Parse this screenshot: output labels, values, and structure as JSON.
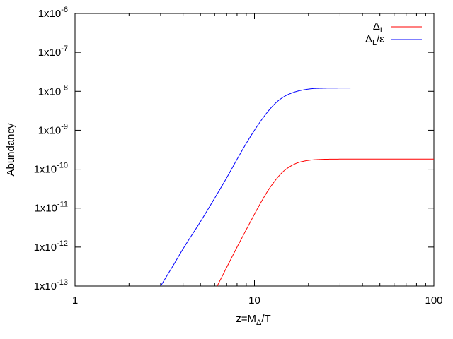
{
  "chart_data": {
    "type": "line",
    "xlabel": {
      "main": "z=M",
      "sub": "Δ",
      "rest": "/T"
    },
    "ylabel": "Abundancy",
    "xscale": "log",
    "yscale": "log",
    "xlim": [
      1,
      100
    ],
    "ylim": [
      1e-13,
      1e-06
    ],
    "x_ticks": [
      {
        "value": 1,
        "label": "1"
      },
      {
        "value": 10,
        "label": "10"
      },
      {
        "value": 100,
        "label": "100"
      }
    ],
    "y_ticks": [
      {
        "value": 1e-06,
        "base": "1x10",
        "exp": "-6"
      },
      {
        "value": 1e-07,
        "base": "1x10",
        "exp": "-7"
      },
      {
        "value": 1e-08,
        "base": "1x10",
        "exp": "-8"
      },
      {
        "value": 1e-09,
        "base": "1x10",
        "exp": "-9"
      },
      {
        "value": 1e-10,
        "base": "1x10",
        "exp": "-10"
      },
      {
        "value": 1e-11,
        "base": "1x10",
        "exp": "-11"
      },
      {
        "value": 1e-12,
        "base": "1x10",
        "exp": "-12"
      },
      {
        "value": 1e-13,
        "base": "1x10",
        "exp": "-13"
      }
    ],
    "grid": false,
    "legend_position": "top-right",
    "series": [
      {
        "name": "Δ_L",
        "label_main": "Δ",
        "label_sub": "L",
        "label_rest": "",
        "color": "#ff0000",
        "points": [
          [
            6.2,
            1e-13
          ],
          [
            7,
            3e-13
          ],
          [
            8,
            1e-12
          ],
          [
            9,
            2.8e-12
          ],
          [
            10,
            7e-12
          ],
          [
            11,
            1.55e-11
          ],
          [
            12,
            3e-11
          ],
          [
            13,
            5e-11
          ],
          [
            14,
            7.5e-11
          ],
          [
            15,
            1e-10
          ],
          [
            17,
            1.4e-10
          ],
          [
            19,
            1.62e-10
          ],
          [
            21,
            1.73e-10
          ],
          [
            24,
            1.79e-10
          ],
          [
            28,
            1.81e-10
          ],
          [
            40,
            1.82e-10
          ],
          [
            100,
            1.82e-10
          ]
        ]
      },
      {
        "name": "Δ_L/ε",
        "label_main": "Δ",
        "label_sub": "L",
        "label_rest": "/ε",
        "color": "#0000ff",
        "points": [
          [
            3,
            1e-13
          ],
          [
            3.5,
            3.2e-13
          ],
          [
            4,
            9e-13
          ],
          [
            5,
            4.5e-12
          ],
          [
            6,
            1.8e-11
          ],
          [
            7,
            6e-11
          ],
          [
            8,
            1.8e-10
          ],
          [
            9,
            4.6e-10
          ],
          [
            10,
            1e-09
          ],
          [
            11,
            1.9e-09
          ],
          [
            12,
            3.2e-09
          ],
          [
            13,
            4.8e-09
          ],
          [
            14,
            6.4e-09
          ],
          [
            15,
            7.8e-09
          ],
          [
            17,
            9.8e-09
          ],
          [
            19,
            1.1e-08
          ],
          [
            21,
            1.17e-08
          ],
          [
            24,
            1.2e-08
          ],
          [
            28,
            1.21e-08
          ],
          [
            40,
            1.22e-08
          ],
          [
            100,
            1.22e-08
          ]
        ]
      }
    ]
  }
}
